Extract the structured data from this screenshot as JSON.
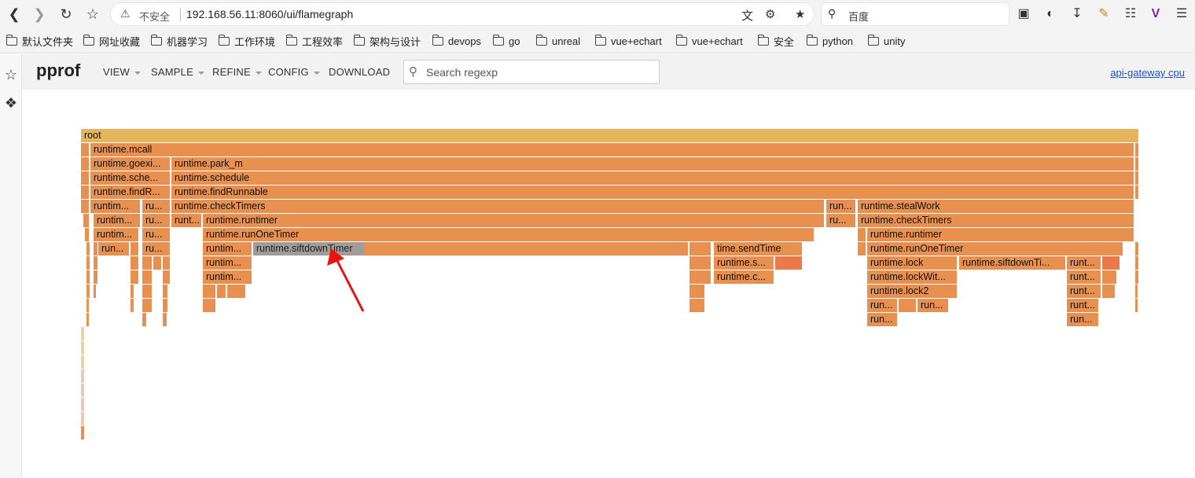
{
  "browser": {
    "insecure_label": "不安全",
    "url": "192.168.56.11:8060/ui/flamegraph",
    "search_engine": "百度",
    "bookmarks": [
      "默认文件夹",
      "网址收藏",
      "机器学习",
      "工作环境",
      "工程效率",
      "架构与设计",
      "devops",
      "go",
      "unreal",
      "vue+echart",
      "vue+echart",
      "安全",
      "python",
      "unity"
    ]
  },
  "pprof": {
    "logo": "pprof",
    "menus": [
      "VIEW",
      "SAMPLE",
      "REFINE",
      "CONFIG",
      "DOWNLOAD"
    ],
    "search_placeholder": "Search regexp",
    "profile_title": "api-gateway cpu"
  },
  "flamegraph": {
    "highlighted": "runtime.siftdownTimer",
    "frames": [
      "root",
      "runtime.mcall",
      "runtime.goexi...",
      "runtime.park_m",
      "runtime.sche...",
      "runtime.schedule",
      "runtime.findR...",
      "runtime.findRunnable",
      "runtim...",
      "ru...",
      "runtime.checkTimers",
      "run...",
      "runtime.stealWork",
      "runtim...",
      "ru...",
      "runt...",
      "runtime.runtimer",
      "ru...",
      "runtime.checkTimers",
      "runtim...",
      "ru...",
      "runtime.runOneTimer",
      "runtime.runtimer",
      "run...",
      "ru...",
      "runtim...",
      "runtime.siftdownTimer",
      "time.sendTime",
      "runtime.runOneTimer",
      "runtim...",
      "runtime.s...",
      "runtime.lock",
      "runtime.siftdownTi...",
      "runt...",
      "runtim...",
      "runtime.c...",
      "runtime.lockWit...",
      "runt...",
      "runtime.lock2",
      "runt...",
      "run...",
      "run...",
      "runt...",
      "run...",
      "run..."
    ]
  },
  "colors": {
    "frame": "#e7904f",
    "root": "#e4b55a",
    "hot": "#eb7a4a",
    "highlight": "#a19c98",
    "link": "#1a56c9"
  }
}
